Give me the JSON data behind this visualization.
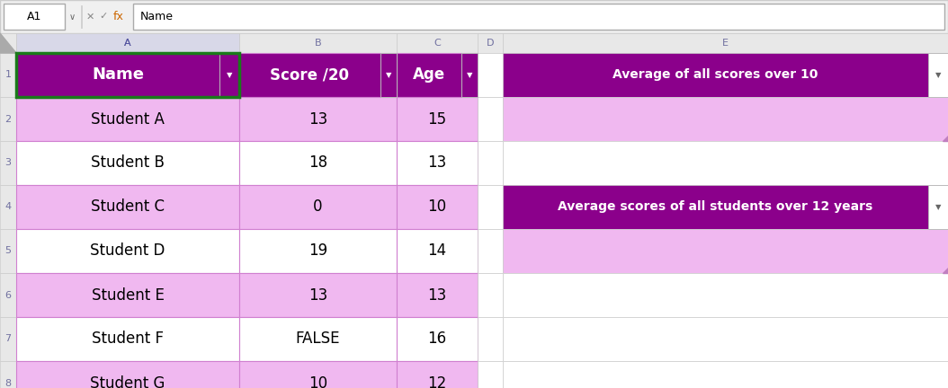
{
  "fig_width": 10.54,
  "fig_height": 4.32,
  "dpi": 100,
  "header_bg": "#8B008B",
  "header_text_color": "#FFFFFF",
  "row_pink_bg": "#F0B8F0",
  "row_white_bg": "#FFFFFF",
  "grid_color_main": "#D080D0",
  "grid_color_light": "#CCCCCC",
  "toolbar_bg": "#F0F0F0",
  "col_hdr_bg": "#E8E8E8",
  "col_hdr_text": "#7070A0",
  "row_num_bg": "#E8E8E8",
  "row_num_text": "#7070A0",
  "formula_bar_text": "Name",
  "cell_ref": "A1",
  "col_A_header": "Name",
  "col_B_header": "Score /20",
  "col_C_header": "Age",
  "data": [
    [
      "Student A",
      "13",
      "15"
    ],
    [
      "Student B",
      "18",
      "13"
    ],
    [
      "Student C",
      "0",
      "10"
    ],
    [
      "Student D",
      "19",
      "14"
    ],
    [
      "Student E",
      "13",
      "13"
    ],
    [
      "Student F",
      "FALSE",
      "16"
    ],
    [
      "Student G",
      "10",
      "12"
    ]
  ],
  "e1_text": "Average of all scores over 10",
  "e4_text": "Average scores of all students over 12 years",
  "selected_cell_border": "#1A7A1A",
  "corner_indicator_color": "#C080C0",
  "fx_color": "#CC6600",
  "row_colors": [
    "purple",
    "pink",
    "white",
    "pink",
    "white",
    "pink",
    "white",
    "pink"
  ],
  "e_colors": [
    "purple",
    "pink",
    "white",
    "purple",
    "pink",
    "white",
    "white",
    "white"
  ]
}
